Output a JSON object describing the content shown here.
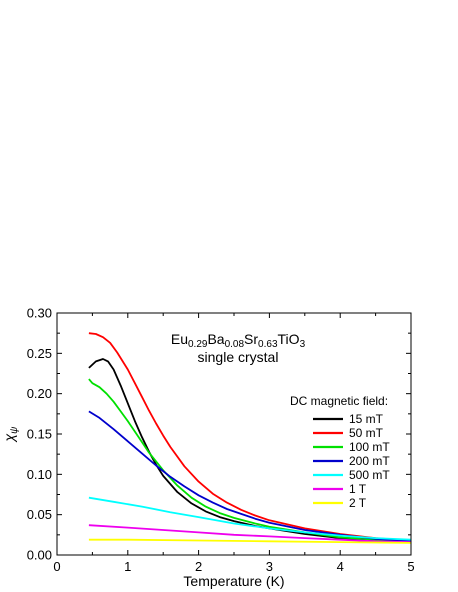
{
  "chart_data": {
    "type": "line",
    "title": "",
    "xlabel": "Temperature (K)",
    "ylabel": {
      "main": "χ",
      "sub": "ψ"
    },
    "xlim": [
      0,
      5
    ],
    "ylim": [
      0,
      0.3
    ],
    "xticks": [
      0,
      1,
      2,
      3,
      4,
      5
    ],
    "yticks": [
      0.0,
      0.05,
      0.1,
      0.15,
      0.2,
      0.25,
      0.3
    ],
    "ytick_labels": [
      "0.00",
      "0.05",
      "0.10",
      "0.15",
      "0.20",
      "0.25",
      "0.30"
    ],
    "grid": false,
    "annotations": {
      "formula": [
        {
          "text": "Eu",
          "sub": false
        },
        {
          "text": "0.29",
          "sub": true
        },
        {
          "text": "Ba",
          "sub": false
        },
        {
          "text": "0.08",
          "sub": true
        },
        {
          "text": "Sr",
          "sub": false
        },
        {
          "text": "0.63",
          "sub": true
        },
        {
          "text": "TiO",
          "sub": false
        },
        {
          "text": "3",
          "sub": true
        }
      ],
      "line2": "single crystal"
    },
    "legend": {
      "title": "DC magnetic field:",
      "placement": "center-right"
    },
    "series": [
      {
        "name": "15 mT",
        "color": "#000000",
        "points": [
          [
            0.45,
            0.232
          ],
          [
            0.55,
            0.24
          ],
          [
            0.65,
            0.243
          ],
          [
            0.72,
            0.24
          ],
          [
            0.8,
            0.23
          ],
          [
            0.9,
            0.21
          ],
          [
            1.0,
            0.188
          ],
          [
            1.1,
            0.166
          ],
          [
            1.2,
            0.146
          ],
          [
            1.3,
            0.128
          ],
          [
            1.4,
            0.112
          ],
          [
            1.5,
            0.098
          ],
          [
            1.7,
            0.078
          ],
          [
            1.9,
            0.064
          ],
          [
            2.1,
            0.054
          ],
          [
            2.3,
            0.047
          ],
          [
            2.5,
            0.042
          ],
          [
            2.8,
            0.036
          ],
          [
            3.0,
            0.033
          ],
          [
            3.5,
            0.026
          ],
          [
            4.0,
            0.021
          ],
          [
            4.5,
            0.018
          ],
          [
            5.0,
            0.016
          ]
        ]
      },
      {
        "name": "50 mT",
        "color": "#ff0000",
        "points": [
          [
            0.45,
            0.275
          ],
          [
            0.55,
            0.274
          ],
          [
            0.65,
            0.27
          ],
          [
            0.75,
            0.263
          ],
          [
            0.85,
            0.251
          ],
          [
            1.0,
            0.23
          ],
          [
            1.1,
            0.213
          ],
          [
            1.2,
            0.196
          ],
          [
            1.3,
            0.179
          ],
          [
            1.4,
            0.163
          ],
          [
            1.5,
            0.148
          ],
          [
            1.6,
            0.134
          ],
          [
            1.8,
            0.11
          ],
          [
            2.0,
            0.091
          ],
          [
            2.2,
            0.076
          ],
          [
            2.4,
            0.065
          ],
          [
            2.6,
            0.056
          ],
          [
            2.8,
            0.049
          ],
          [
            3.0,
            0.043
          ],
          [
            3.5,
            0.033
          ],
          [
            4.0,
            0.026
          ],
          [
            4.5,
            0.021
          ],
          [
            5.0,
            0.017
          ]
        ]
      },
      {
        "name": "100 mT",
        "color": "#00e000",
        "points": [
          [
            0.45,
            0.218
          ],
          [
            0.5,
            0.213
          ],
          [
            0.6,
            0.208
          ],
          [
            0.7,
            0.2
          ],
          [
            0.8,
            0.19
          ],
          [
            0.9,
            0.178
          ],
          [
            1.0,
            0.166
          ],
          [
            1.1,
            0.153
          ],
          [
            1.2,
            0.14
          ],
          [
            1.3,
            0.127
          ],
          [
            1.4,
            0.116
          ],
          [
            1.5,
            0.105
          ],
          [
            1.7,
            0.086
          ],
          [
            1.9,
            0.071
          ],
          [
            2.1,
            0.06
          ],
          [
            2.3,
            0.052
          ],
          [
            2.5,
            0.046
          ],
          [
            2.8,
            0.039
          ],
          [
            3.0,
            0.035
          ],
          [
            3.5,
            0.028
          ],
          [
            4.0,
            0.022
          ],
          [
            4.5,
            0.019
          ],
          [
            5.0,
            0.016
          ]
        ]
      },
      {
        "name": "200 mT",
        "color": "#0000cc",
        "points": [
          [
            0.45,
            0.178
          ],
          [
            0.6,
            0.17
          ],
          [
            0.8,
            0.156
          ],
          [
            1.0,
            0.141
          ],
          [
            1.2,
            0.126
          ],
          [
            1.4,
            0.111
          ],
          [
            1.6,
            0.097
          ],
          [
            1.8,
            0.085
          ],
          [
            2.0,
            0.074
          ],
          [
            2.2,
            0.065
          ],
          [
            2.4,
            0.057
          ],
          [
            2.6,
            0.051
          ],
          [
            2.8,
            0.045
          ],
          [
            3.0,
            0.04
          ],
          [
            3.5,
            0.031
          ],
          [
            4.0,
            0.025
          ],
          [
            4.5,
            0.02
          ],
          [
            5.0,
            0.017
          ]
        ]
      },
      {
        "name": "500 mT",
        "color": "#00ffff",
        "points": [
          [
            0.45,
            0.071
          ],
          [
            0.8,
            0.066
          ],
          [
            1.2,
            0.06
          ],
          [
            1.6,
            0.053
          ],
          [
            2.0,
            0.047
          ],
          [
            2.5,
            0.039
          ],
          [
            3.0,
            0.033
          ],
          [
            3.5,
            0.028
          ],
          [
            4.0,
            0.024
          ],
          [
            4.5,
            0.021
          ],
          [
            5.0,
            0.019
          ]
        ]
      },
      {
        "name": "1 T",
        "color": "#ee00ee",
        "points": [
          [
            0.45,
            0.037
          ],
          [
            1.0,
            0.034
          ],
          [
            1.5,
            0.031
          ],
          [
            2.0,
            0.028
          ],
          [
            2.5,
            0.025
          ],
          [
            3.0,
            0.023
          ],
          [
            3.5,
            0.021
          ],
          [
            4.0,
            0.019
          ],
          [
            4.5,
            0.017
          ],
          [
            5.0,
            0.016
          ]
        ]
      },
      {
        "name": "2 T",
        "color": "#ffff00",
        "points": [
          [
            0.45,
            0.019
          ],
          [
            1.0,
            0.019
          ],
          [
            2.0,
            0.018
          ],
          [
            3.0,
            0.017
          ],
          [
            4.0,
            0.016
          ],
          [
            5.0,
            0.015
          ]
        ]
      }
    ]
  }
}
